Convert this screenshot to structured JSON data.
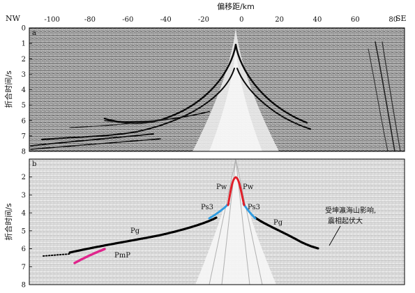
{
  "figure": {
    "top_axis_title": "偏移距/km",
    "left_label": "NW",
    "right_label": "SE",
    "x_ticks": [
      "-100",
      "-80",
      "-60",
      "-40",
      "-20",
      "0",
      "20",
      "40",
      "60",
      "80"
    ],
    "x_tick_values": [
      -100,
      -80,
      -60,
      -40,
      -20,
      0,
      20,
      40,
      60,
      80
    ],
    "x_range": [
      -112,
      86
    ]
  },
  "panel_a": {
    "label": "a",
    "ylabel": "折合时间/s",
    "y_ticks": [
      "0",
      "1",
      "2",
      "3",
      "4",
      "5",
      "6",
      "7",
      "8"
    ],
    "y_range": [
      0,
      8
    ]
  },
  "panel_b": {
    "label": "b",
    "ylabel": "折合时间/s",
    "y_ticks": [
      "2",
      "3",
      "4",
      "5",
      "6",
      "7",
      "8"
    ],
    "y_range": [
      1,
      8
    ],
    "phases": {
      "pg_left": "Pg",
      "pg_right": "Pg",
      "ps3_left": "Ps3",
      "ps3_right": "Ps3",
      "pw_left": "Pw",
      "pw_right": "Pw",
      "pmp": "PmP"
    },
    "annotation_line1": "受坤瀛海山影响,",
    "annotation_line2": "震相起伏大",
    "colors": {
      "pg": "#000000",
      "ps3": "#2f9be0",
      "pw": "#e0202a",
      "pmp": "#e0248c"
    }
  }
}
